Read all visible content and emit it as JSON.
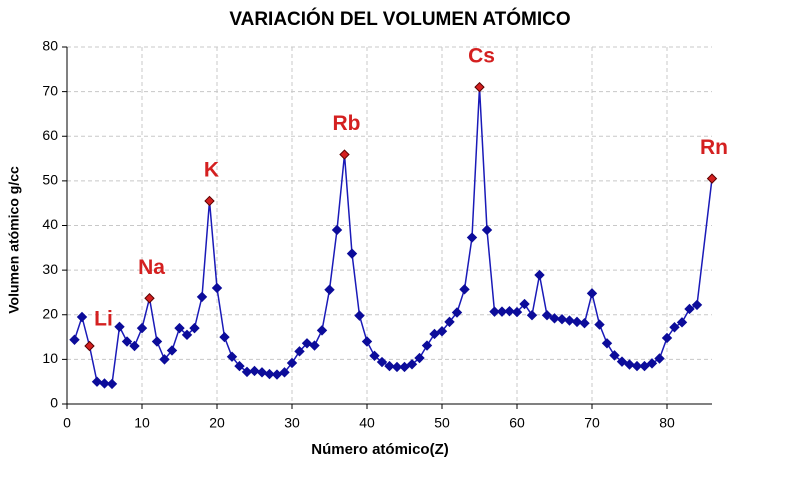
{
  "chart_data": {
    "type": "line",
    "title": "VARIACIÓN DEL VOLUMEN ATÓMICO",
    "xlabel": "Número atómico(Z)",
    "ylabel": "Volumen atómico g/cc",
    "x": [
      1,
      2,
      3,
      4,
      5,
      6,
      7,
      8,
      9,
      10,
      11,
      12,
      13,
      14,
      15,
      16,
      17,
      18,
      19,
      20,
      21,
      22,
      23,
      24,
      25,
      26,
      27,
      28,
      29,
      30,
      31,
      32,
      33,
      34,
      35,
      36,
      37,
      38,
      39,
      40,
      41,
      42,
      43,
      44,
      45,
      46,
      47,
      48,
      49,
      50,
      51,
      52,
      53,
      54,
      55,
      56,
      57,
      58,
      59,
      60,
      61,
      62,
      63,
      64,
      65,
      66,
      67,
      68,
      69,
      70,
      71,
      72,
      73,
      74,
      75,
      76,
      77,
      78,
      79,
      80,
      81,
      82,
      83,
      84,
      86
    ],
    "series": [
      {
        "color": "#1a1ab8",
        "marker_color": "#0c0c9a",
        "values": [
          14.4,
          19.5,
          13,
          5,
          4.6,
          4.5,
          17.3,
          14,
          13,
          17,
          23.7,
          14,
          10,
          12,
          17,
          15.5,
          17,
          24,
          45.5,
          26,
          15,
          10.6,
          8.5,
          7.2,
          7.4,
          7.1,
          6.7,
          6.6,
          7.1,
          9.2,
          11.8,
          13.6,
          13.1,
          16.5,
          25.6,
          39,
          55.9,
          33.7,
          19.8,
          14,
          10.8,
          9.4,
          8.5,
          8.3,
          8.3,
          8.9,
          10.3,
          13.1,
          15.7,
          16.3,
          18.4,
          20.5,
          25.7,
          37.3,
          71,
          39,
          20.7,
          20.7,
          20.8,
          20.6,
          22.4,
          19.9,
          28.9,
          19.9,
          19.2,
          19,
          18.7,
          18.4,
          18.1,
          24.8,
          17.8,
          13.6,
          10.9,
          9.5,
          8.85,
          8.5,
          8.5,
          9.1,
          10.2,
          14.8,
          17.2,
          18.3,
          21.3,
          22.2,
          50.5
        ]
      }
    ],
    "annotations": [
      {
        "text": "Li",
        "x": 3
      },
      {
        "text": "Na",
        "x": 11
      },
      {
        "text": "K",
        "x": 19
      },
      {
        "text": "Rb",
        "x": 37
      },
      {
        "text": "Cs",
        "x": 55
      },
      {
        "text": "Rn",
        "x": 86
      }
    ],
    "annotation_color": "#d42020",
    "xlim": [
      0,
      86
    ],
    "xticks": [
      0,
      10,
      20,
      30,
      40,
      50,
      60,
      70,
      80
    ],
    "ylim": [
      0,
      80
    ],
    "yticks": [
      0,
      10,
      20,
      30,
      40,
      50,
      60,
      70,
      80
    ],
    "grid": true
  }
}
